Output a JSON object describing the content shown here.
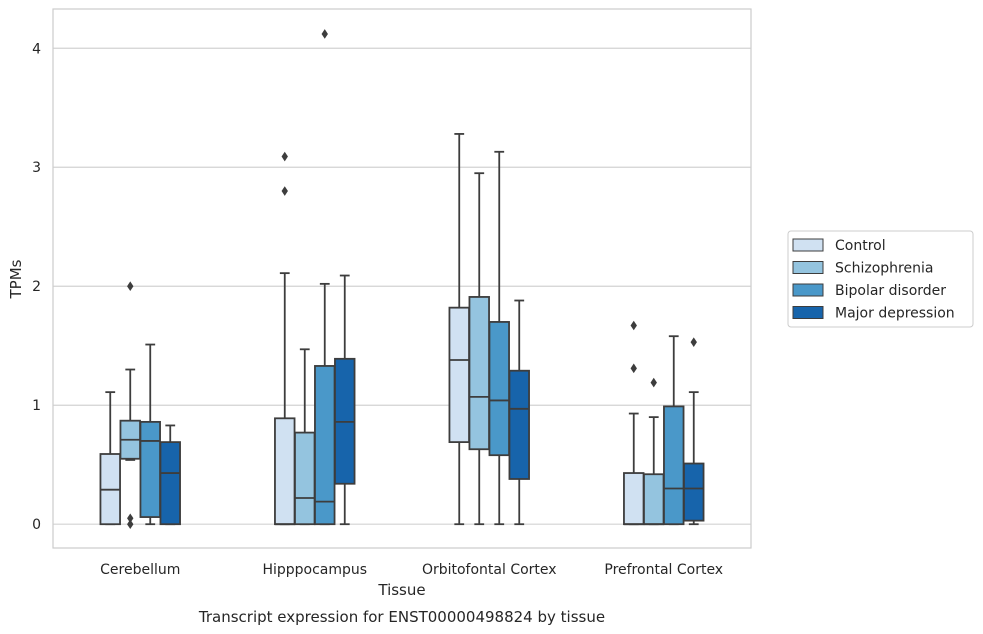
{
  "chart_data": {
    "type": "box",
    "caption": "Transcript expression for ENST00000498824 by tissue",
    "xlabel": "Tissue",
    "ylabel": "TPMs",
    "ylim": [
      -0.2,
      4.33
    ],
    "yticks": [
      0,
      1,
      2,
      3,
      4
    ],
    "grid": true,
    "legend_position": "right",
    "categories": [
      "Cerebellum",
      "Hipppocampus",
      "Orbitofontal Cortex",
      "Prefrontal Cortex"
    ],
    "series": [
      {
        "name": "Control",
        "color": "#d0e1f2",
        "boxes": [
          {
            "whislo": 0,
            "q1": 0,
            "med": 0.29,
            "q3": 0.59,
            "whishi": 1.11,
            "fliers": []
          },
          {
            "whislo": 0,
            "q1": 0,
            "med": 0,
            "q3": 0.89,
            "whishi": 2.11,
            "fliers": [
              2.8,
              3.09
            ]
          },
          {
            "whislo": 0,
            "q1": 0.69,
            "med": 1.38,
            "q3": 1.82,
            "whishi": 3.28,
            "fliers": []
          },
          {
            "whislo": 0,
            "q1": 0,
            "med": 0,
            "q3": 0.43,
            "whishi": 0.93,
            "fliers": [
              1.31,
              1.67
            ]
          }
        ]
      },
      {
        "name": "Schizophrenia",
        "color": "#94c4df",
        "boxes": [
          {
            "whislo": 0.54,
            "q1": 0.55,
            "med": 0.71,
            "q3": 0.87,
            "whishi": 1.3,
            "fliers": [
              0,
              0.05,
              2.0
            ]
          },
          {
            "whislo": 0,
            "q1": 0,
            "med": 0.22,
            "q3": 0.77,
            "whishi": 1.47,
            "fliers": []
          },
          {
            "whislo": 0,
            "q1": 0.63,
            "med": 1.07,
            "q3": 1.91,
            "whishi": 2.95,
            "fliers": []
          },
          {
            "whislo": 0,
            "q1": 0,
            "med": 0,
            "q3": 0.42,
            "whishi": 0.9,
            "fliers": [
              1.19
            ]
          }
        ]
      },
      {
        "name": "Bipolar disorder",
        "color": "#4a98c9",
        "boxes": [
          {
            "whislo": 0,
            "q1": 0.06,
            "med": 0.7,
            "q3": 0.86,
            "whishi": 1.51,
            "fliers": []
          },
          {
            "whislo": 0,
            "q1": 0,
            "med": 0.19,
            "q3": 1.33,
            "whishi": 2.02,
            "fliers": [
              4.12
            ]
          },
          {
            "whislo": 0,
            "q1": 0.58,
            "med": 1.04,
            "q3": 1.7,
            "whishi": 3.13,
            "fliers": []
          },
          {
            "whislo": 0,
            "q1": 0,
            "med": 0.3,
            "q3": 0.99,
            "whishi": 1.58,
            "fliers": []
          }
        ]
      },
      {
        "name": "Major depression",
        "color": "#1764ab",
        "boxes": [
          {
            "whislo": 0,
            "q1": 0,
            "med": 0.43,
            "q3": 0.69,
            "whishi": 0.83,
            "fliers": []
          },
          {
            "whislo": 0,
            "q1": 0.34,
            "med": 0.86,
            "q3": 1.39,
            "whishi": 2.09,
            "fliers": []
          },
          {
            "whislo": 0,
            "q1": 0.38,
            "med": 0.97,
            "q3": 1.29,
            "whishi": 1.88,
            "fliers": []
          },
          {
            "whislo": 0,
            "q1": 0.03,
            "med": 0.3,
            "q3": 0.51,
            "whishi": 1.11,
            "fliers": [
              1.53
            ]
          }
        ]
      }
    ]
  }
}
